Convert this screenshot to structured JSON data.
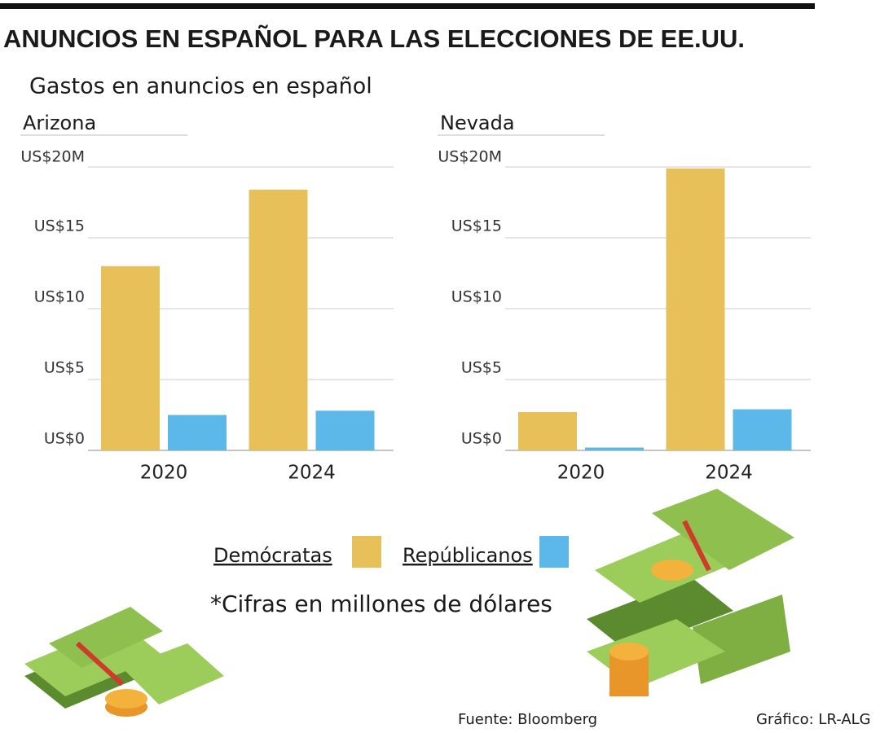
{
  "title": "ANUNCIOS EN ESPAÑOL PARA LAS ELECCIONES DE EE.UU.",
  "subtitle": "Gastos en anuncios en español",
  "note": "*Cifras en millones de dólares",
  "source": "Fuente: Bloomberg",
  "credit": "Gráfico: LR-ALG",
  "chart_data": [
    {
      "type": "bar",
      "title": "Arizona",
      "categories": [
        "2020",
        "2024"
      ],
      "series": [
        {
          "name": "Demócratas",
          "color": "#e8c05a",
          "values": [
            13.0,
            18.4
          ]
        },
        {
          "name": "Repúblicanos",
          "color": "#5bb8e8",
          "values": [
            2.5,
            2.8
          ]
        }
      ],
      "ylim": [
        0,
        20
      ],
      "yticks": [
        {
          "value": 0,
          "label": "US$0"
        },
        {
          "value": 5,
          "label": "US$5"
        },
        {
          "value": 10,
          "label": "US$10"
        },
        {
          "value": 15,
          "label": "US$15"
        },
        {
          "value": 20,
          "label": "US$20M"
        }
      ],
      "grid": true
    },
    {
      "type": "bar",
      "title": "Nevada",
      "categories": [
        "2020",
        "2024"
      ],
      "series": [
        {
          "name": "Demócratas",
          "color": "#e8c05a",
          "values": [
            2.7,
            19.9
          ]
        },
        {
          "name": "Repúblicanos",
          "color": "#5bb8e8",
          "values": [
            0.2,
            2.9
          ]
        }
      ],
      "ylim": [
        0,
        20
      ],
      "yticks": [
        {
          "value": 0,
          "label": "US$0"
        },
        {
          "value": 5,
          "label": "US$5"
        },
        {
          "value": 10,
          "label": "US$10"
        },
        {
          "value": 15,
          "label": "US$15"
        },
        {
          "value": 20,
          "label": "US$20M"
        }
      ],
      "grid": true
    }
  ]
}
